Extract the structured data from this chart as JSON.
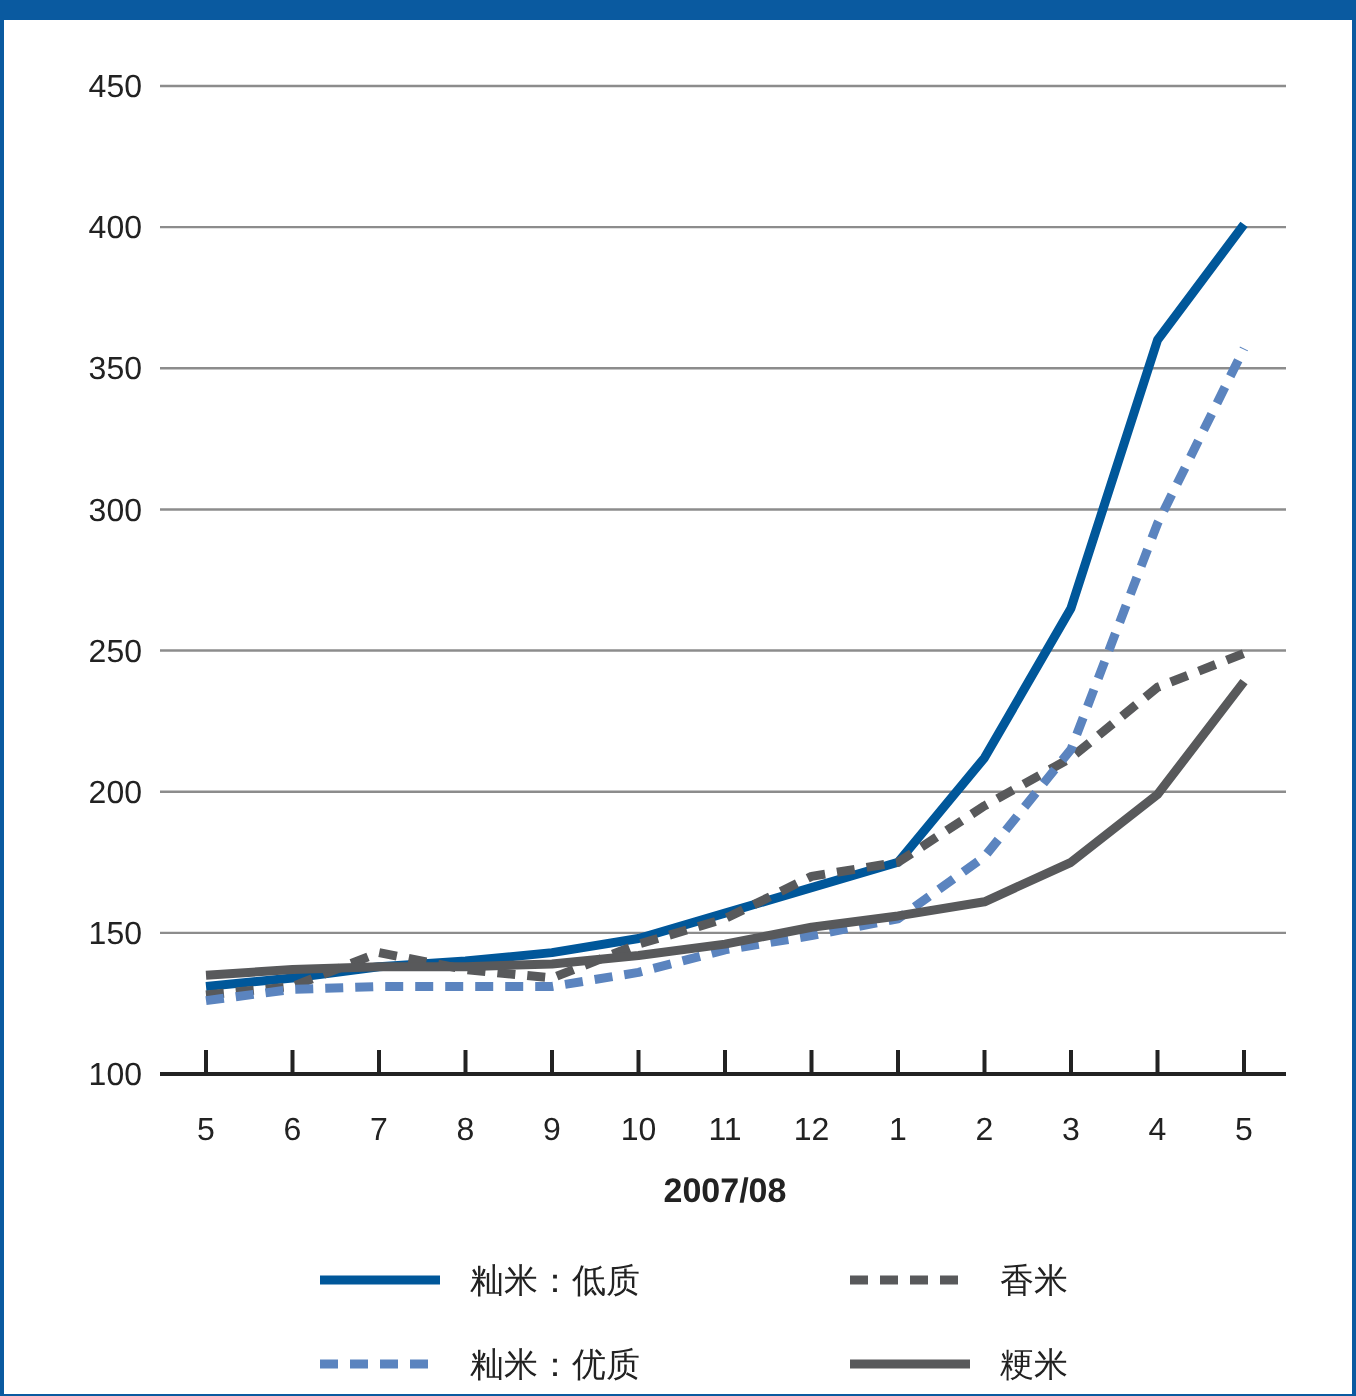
{
  "chart_data": {
    "type": "line",
    "xlabel": "2007/08",
    "categories": [
      "5",
      "6",
      "7",
      "8",
      "9",
      "10",
      "11",
      "12",
      "1",
      "2",
      "3",
      "4",
      "5"
    ],
    "ylim": [
      100,
      450
    ],
    "yticks": [
      100,
      150,
      200,
      250,
      300,
      350,
      400,
      450
    ],
    "grid": "y",
    "legend": "bottom",
    "marker": "none",
    "series": [
      {
        "name": "籼米：低质",
        "color": "#00579a",
        "line_style": "solid",
        "values": [
          131,
          134,
          138,
          140,
          143,
          148,
          157,
          166,
          175,
          212,
          265,
          360,
          401
        ]
      },
      {
        "name": "香米",
        "color": "#58595b",
        "line_style": "dashed",
        "values": [
          128,
          131,
          143,
          137,
          134,
          146,
          155,
          170,
          175,
          195,
          212,
          237,
          249
        ]
      },
      {
        "name": "籼米：优质",
        "color": "#5b84bf",
        "line_style": "dashed",
        "values": [
          126,
          130,
          131,
          131,
          131,
          136,
          144,
          149,
          155,
          177,
          215,
          295,
          357
        ]
      },
      {
        "name": "粳米",
        "color": "#58595b",
        "line_style": "solid",
        "values": [
          135,
          137,
          138,
          138,
          139,
          142,
          146,
          152,
          156,
          161,
          175,
          199,
          239
        ]
      }
    ]
  }
}
